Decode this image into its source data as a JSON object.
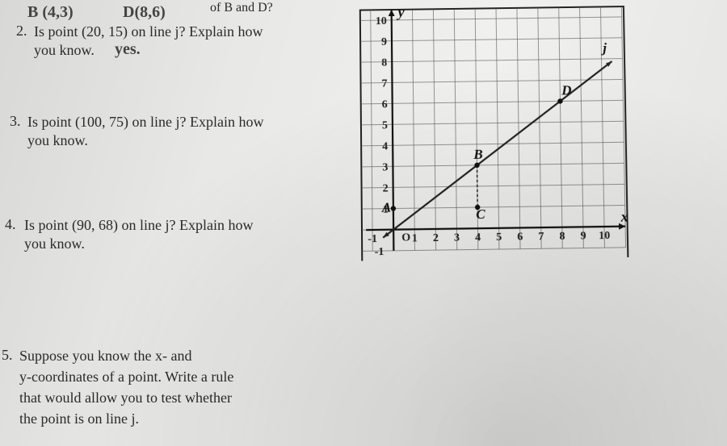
{
  "header": {
    "fragment": "of B and D?",
    "hand_B": "B (4,3)",
    "hand_D": "D(8,6)"
  },
  "q2": {
    "num": "2.",
    "line1": "Is point (20, 15) on line j? Explain how",
    "line2": "you know.",
    "hand": "yes."
  },
  "q3": {
    "num": "3.",
    "line1": "Is point (100, 75) on line j? Explain how",
    "line2": "you know."
  },
  "q4": {
    "num": "4.",
    "line1": "Is point (90, 68) on line j? Explain how",
    "line2": "you know."
  },
  "q5": {
    "num": "5.",
    "line1": "Suppose you know the x- and",
    "line2": "y-coordinates of a point. Write a rule",
    "line3": "that would allow you to test whether",
    "line4": "the point is on line j."
  },
  "graph": {
    "x_axis_label": "x",
    "y_axis_label": "y",
    "x_ticks": [
      "-1",
      "1",
      "2",
      "3",
      "4",
      "5",
      "6",
      "7",
      "8",
      "9",
      "10"
    ],
    "y_ticks": [
      "-1",
      "1",
      "2",
      "3",
      "4",
      "5",
      "6",
      "7",
      "8",
      "9",
      "10"
    ],
    "origin_label": "O",
    "points": {
      "A": {
        "x": 0,
        "y": 1,
        "label": "A",
        "label_dx": -14,
        "label_dy": 4
      },
      "B": {
        "x": 4,
        "y": 3,
        "label": "B",
        "label_dx": -4,
        "label_dy": -8
      },
      "C": {
        "x": 4,
        "y": 1,
        "label": "C",
        "label_dx": -2,
        "label_dy": 14
      },
      "D": {
        "x": 8,
        "y": 6,
        "label": "D",
        "label_dx": 2,
        "label_dy": -8
      },
      "J": {
        "x": 10,
        "y": 8,
        "label": "j",
        "label_dx": 2,
        "label_dy": -8
      }
    },
    "line_j": {
      "x1": -0.5,
      "y1": -0.375,
      "x2": 10.5,
      "y2": 7.875
    },
    "colors": {
      "grid": "#555555",
      "axis": "#111111",
      "line": "#222222",
      "bg": "#e9e9e7"
    },
    "xlim": [
      -1,
      11
    ],
    "ylim": [
      -1,
      11
    ],
    "cell": 26
  }
}
